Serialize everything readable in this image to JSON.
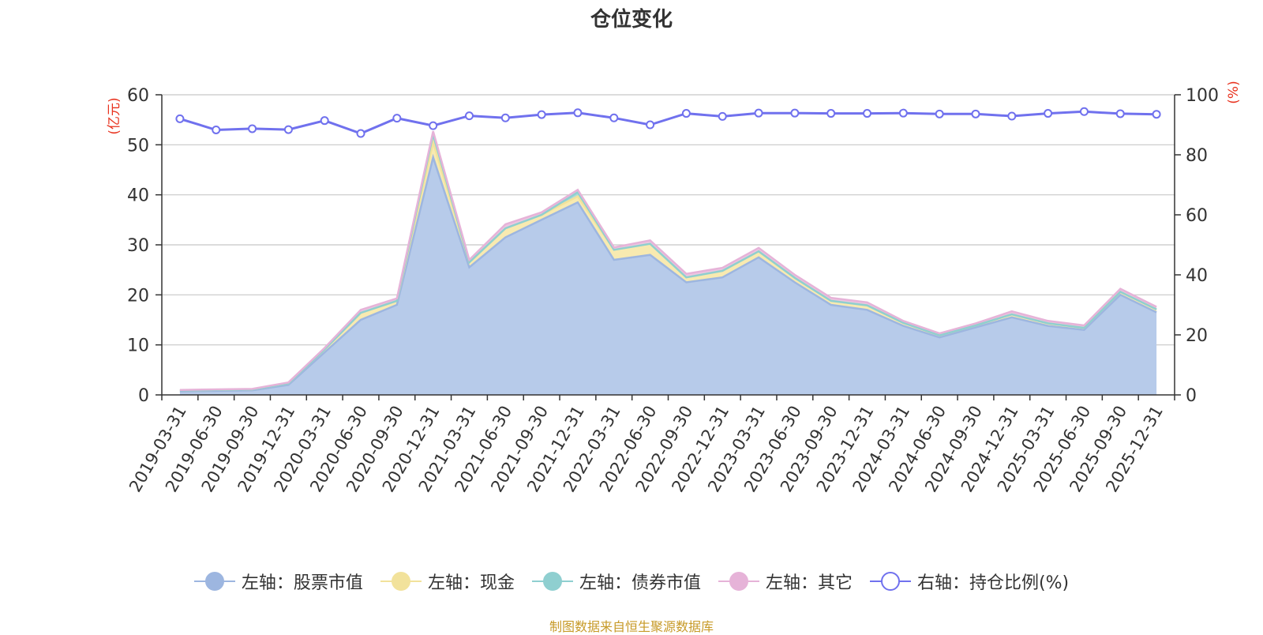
{
  "chart_data": {
    "type": "area",
    "title": "仓位变化",
    "left_axis_unit": "(亿元)",
    "right_axis_unit": "(%)",
    "left_ylim": [
      0,
      60
    ],
    "left_ticks": [
      0,
      10,
      20,
      30,
      40,
      50,
      60
    ],
    "right_ylim": [
      0,
      100
    ],
    "right_ticks": [
      0,
      20,
      40,
      60,
      80,
      100
    ],
    "tick_labels": [
      "2019-03-31",
      "2019-06-30",
      "2019-09-30",
      "2019-12-31",
      "2020-03-31",
      "2020-06-30",
      "2020-09-30",
      "2020-12-31",
      "2021-03-31",
      "2021-06-30",
      "2021-09-30",
      "2021-12-31",
      "2022-03-31",
      "2022-06-30",
      "2022-09-30",
      "2022-12-31",
      "2023-03-31",
      "2023-06-30",
      "2023-09-30",
      "2023-12-31",
      "2024-03-31",
      "2024-06-30",
      "2024-09-30",
      "2024-12-31",
      "2025-03-31",
      "2025-06-30",
      "2025-09-30",
      "2025-12-31"
    ],
    "categories": [
      "2019-03-31",
      "2019-06-30",
      "2019-09-30",
      "2019-12-31",
      "2020-03-31",
      "2020-06-30",
      "2020-09-30",
      "2020-12-31",
      "2021-03-31",
      "2021-06-30",
      "2021-09-30",
      "2021-12-31",
      "2022-03-31",
      "2022-06-30",
      "2022-09-30",
      "2022-12-31",
      "2023-03-31",
      "2023-06-30",
      "2023-09-30",
      "2023-12-31",
      "2024-03-31",
      "2024-06-30",
      "2024-09-30",
      "2024-12-31",
      "2025-03-31",
      "2025-06-30",
      "2025-09-30",
      "2025-12-31"
    ],
    "series": [
      {
        "name": "左轴：股票市值",
        "axis": "left",
        "kind": "area",
        "color": "#9db6e0",
        "fill": "#b7cbea",
        "values": [
          0.7,
          0.8,
          0.9,
          2.0,
          8.5,
          15.0,
          18.0,
          47.5,
          25.5,
          31.5,
          35.0,
          38.5,
          27.0,
          28.0,
          22.5,
          23.5,
          27.5,
          22.5,
          18.0,
          17.0,
          13.8,
          11.5,
          13.5,
          15.5,
          13.8,
          13.0,
          20.0,
          16.5
        ]
      },
      {
        "name": "左轴：现金",
        "axis": "left",
        "kind": "area",
        "color": "#f2e29b",
        "fill": "#f8eab0",
        "values": [
          0.2,
          0.2,
          0.2,
          0.3,
          0.6,
          1.4,
          0.8,
          3.0,
          1.0,
          1.8,
          1.0,
          1.2,
          2.0,
          2.2,
          1.0,
          1.3,
          1.2,
          0.9,
          0.8,
          0.9,
          0.6,
          0.4,
          0.4,
          0.6,
          0.5,
          0.4,
          0.6,
          0.6
        ]
      },
      {
        "name": "左轴：债券市值",
        "axis": "left",
        "kind": "area",
        "color": "#8fcfd0",
        "fill": "#a9dbdb",
        "values": [
          0,
          0,
          0,
          0,
          0,
          0,
          0,
          1.6,
          0,
          0,
          0,
          0.8,
          0,
          0,
          0,
          0,
          0,
          0,
          0,
          0,
          0,
          0,
          0,
          0,
          0,
          0,
          0,
          0
        ]
      },
      {
        "name": "左轴：其它",
        "axis": "left",
        "kind": "area",
        "color": "#e6b3d8",
        "fill": "#edc6e3",
        "values": [
          0.1,
          0.1,
          0.1,
          0.2,
          0.3,
          0.6,
          0.5,
          0.6,
          0.5,
          0.8,
          0.5,
          0.5,
          0.5,
          0.7,
          0.7,
          0.6,
          0.7,
          0.6,
          0.6,
          0.6,
          0.4,
          0.4,
          0.4,
          0.6,
          0.5,
          0.5,
          0.6,
          0.5
        ]
      },
      {
        "name": "右轴：持仓比例(%)",
        "axis": "right",
        "kind": "line",
        "color": "#7071ee",
        "values": [
          92.0,
          88.3,
          88.7,
          88.4,
          91.4,
          87.1,
          92.2,
          89.7,
          93.0,
          92.3,
          93.4,
          94.0,
          92.3,
          90.0,
          93.8,
          92.8,
          93.9,
          93.9,
          93.8,
          93.8,
          93.9,
          93.6,
          93.6,
          92.9,
          93.8,
          94.4,
          93.7,
          93.5
        ]
      }
    ]
  },
  "source_text": "制图数据来自恒生聚源数据库"
}
